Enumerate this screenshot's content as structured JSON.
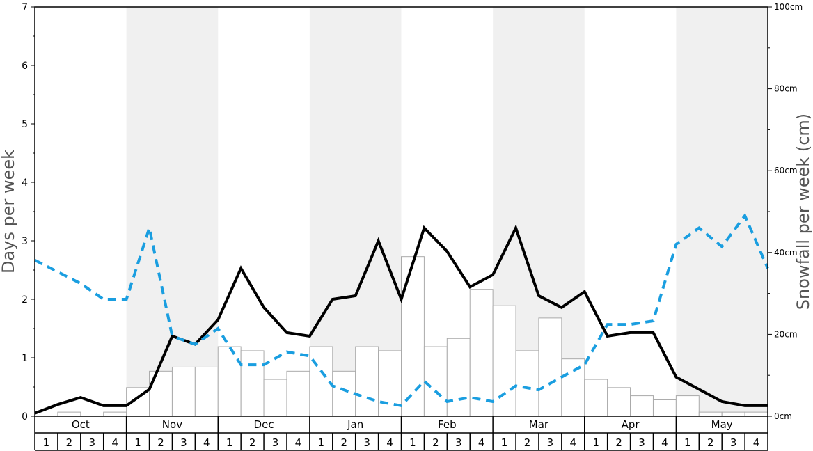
{
  "chart_data": {
    "type": "bar+line",
    "months": [
      "Oct",
      "Nov",
      "Dec",
      "Jan",
      "Feb",
      "Mar",
      "Apr",
      "May"
    ],
    "weeks": [
      "1",
      "2",
      "3",
      "4"
    ],
    "shaded_months": [
      "Nov",
      "Jan",
      "Mar",
      "May"
    ],
    "left_axis": {
      "title": "Days per week",
      "ylim": [
        0,
        7
      ],
      "ticks": [
        "0",
        "1",
        "2",
        "3",
        "4",
        "5",
        "6",
        "7"
      ]
    },
    "right_axis": {
      "title": "Snowfall per week (cm)",
      "ylim": [
        0,
        100
      ],
      "ticks": [
        "0cm",
        "20cm",
        "40cm",
        "60cm",
        "80cm",
        "100cm"
      ]
    },
    "series": [
      {
        "style": "bars",
        "axis": "right",
        "color": "#aaaaaa",
        "values": [
          0,
          1,
          0,
          1,
          7,
          11,
          12,
          12,
          17,
          16,
          9,
          11,
          17,
          11,
          17,
          16,
          39,
          17,
          19,
          31,
          27,
          16,
          24,
          14,
          9,
          7,
          5,
          4,
          5,
          1,
          1,
          1
        ]
      },
      {
        "style": "solid-line",
        "axis": "left",
        "color": "#000000",
        "values": [
          0.05,
          0.2,
          0.32,
          0.18,
          0.18,
          0.46,
          1.37,
          1.23,
          1.65,
          2.53,
          1.86,
          1.43,
          1.37,
          2.0,
          2.06,
          3.0,
          2.0,
          3.22,
          2.82,
          2.21,
          2.42,
          3.22,
          2.06,
          1.86,
          2.13,
          1.37,
          1.43,
          1.43,
          0.67,
          0.46,
          0.25,
          0.18,
          0.18
        ]
      },
      {
        "style": "dashed-line",
        "axis": "left",
        "color": "#1a9ee0",
        "values": [
          2.67,
          2.47,
          2.27,
          2.0,
          2.0,
          3.22,
          1.37,
          1.23,
          1.5,
          0.88,
          0.88,
          1.1,
          1.03,
          0.52,
          0.38,
          0.25,
          0.18,
          0.6,
          0.25,
          0.32,
          0.25,
          0.52,
          0.45,
          0.67,
          0.88,
          1.57,
          1.57,
          1.63,
          2.94,
          3.22,
          2.9,
          3.43,
          2.53
        ]
      }
    ]
  }
}
